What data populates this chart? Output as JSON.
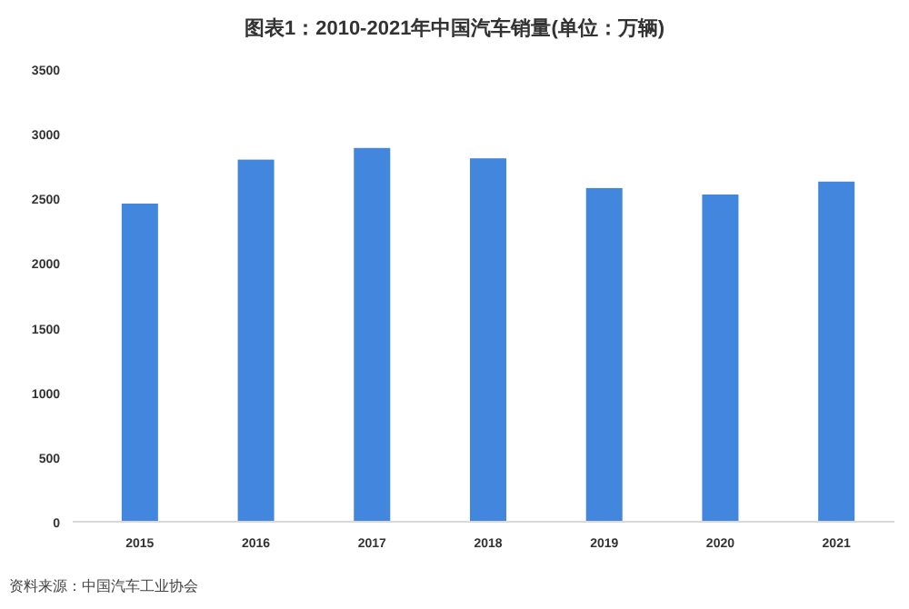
{
  "chart_data": {
    "type": "bar",
    "title": "图表1：2010-2021年中国汽车销量(单位：万辆)",
    "categories": [
      "2015",
      "2016",
      "2017",
      "2018",
      "2019",
      "2020",
      "2021"
    ],
    "values": [
      2460,
      2800,
      2890,
      2810,
      2580,
      2530,
      2630
    ],
    "color": "#4286dd",
    "ylim": [
      0,
      3500
    ],
    "yticks": [
      0,
      500,
      1000,
      1500,
      2000,
      2500,
      3000,
      3500
    ],
    "annotations": [
      "资料来源：中国汽车工业协会"
    ]
  }
}
